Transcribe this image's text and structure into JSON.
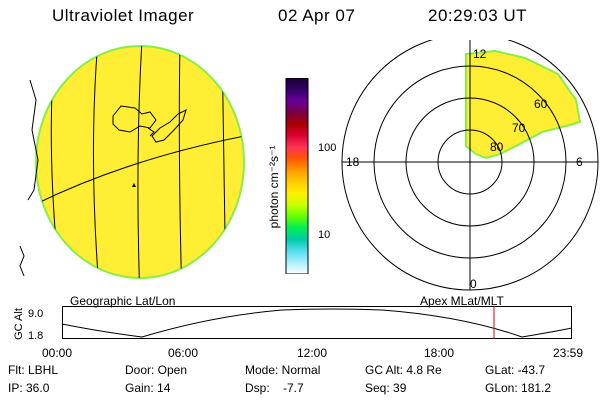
{
  "header": {
    "title": "Ultraviolet Imager",
    "date": "02 Apr 07",
    "time": "20:29:03 UT"
  },
  "colorbar": {
    "unit_label": "photon cm⁻²s⁻¹",
    "ticks": [
      {
        "value": 100,
        "label": "100"
      },
      {
        "value": 10,
        "label": "10"
      }
    ],
    "scale": "log",
    "colors_top_to_bottom": [
      "#1a0030",
      "#330066",
      "#660099",
      "#7a0044",
      "#aa0000",
      "#dd0033",
      "#ff3355",
      "#ff5500",
      "#ff9900",
      "#ffcc00",
      "#ffee00",
      "#ccff00",
      "#66ff00",
      "#00ee55",
      "#00ccaa",
      "#55ddee",
      "#aaeeff",
      "#ffffff"
    ]
  },
  "geo_panel": {
    "label": "Geographic Lat/Lon",
    "fill_color": "#ffee33",
    "edge_color": "#88ee44"
  },
  "polar_panel": {
    "label": "Apex MLat/MLT",
    "mlt_labels": {
      "top": "12",
      "right": "6",
      "bottom": "0",
      "left": "18"
    },
    "lat_labels": [
      "60",
      "70",
      "80"
    ]
  },
  "altitude_plot": {
    "ylabel": "GC Alt",
    "y_ticks": [
      "9.0",
      "1.8"
    ],
    "x_ticks": [
      "00:00",
      "06:00",
      "12:00",
      "18:00",
      "23:59"
    ],
    "marker_color": "#dd0000"
  },
  "info": {
    "row1": [
      "Flt: LBHL",
      "Door: Open",
      "Mode: Normal",
      "GC Alt: 4.8 Re",
      "GLat: -43.7"
    ],
    "row2": [
      "IP: 36.0",
      "Gain: 14",
      "Dsp:    -7.7",
      "Seq: 39",
      "GLon: 181.2"
    ]
  }
}
